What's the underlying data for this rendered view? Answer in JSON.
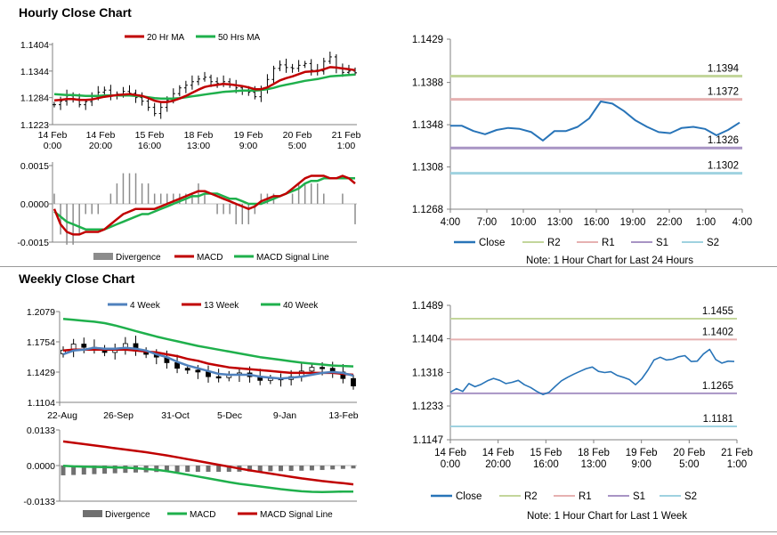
{
  "sections": {
    "hourly_title": "Hourly Close Chart",
    "weekly_title": "Weekly Close Chart"
  },
  "colors": {
    "ma_short": "#c00000",
    "ma_long": "#1fb04c",
    "close": "#2874b8",
    "r2": "#c3d69b",
    "r1": "#e6b1b1",
    "s1": "#a894c4",
    "s2": "#9fd2e0",
    "divergence": "#8c8c8c",
    "price_bar": "#000000",
    "four_week": "#4f81bd"
  },
  "chart_data": [
    {
      "id": "hourly_price",
      "type": "ohlc",
      "legend": [
        "20 Hr MA",
        "50 Hrs MA"
      ],
      "yticks": [
        "1.1404",
        "1.1344",
        "1.1284",
        "1.1223"
      ],
      "ylim": [
        1.1223,
        1.1404
      ],
      "xticks": [
        [
          "14 Feb",
          "0:00"
        ],
        [
          "14 Feb",
          "20:00"
        ],
        [
          "15 Feb",
          "16:00"
        ],
        [
          "18 Feb",
          "13:00"
        ],
        [
          "19 Feb",
          "9:00"
        ],
        [
          "20 Feb",
          "5:00"
        ],
        [
          "21 Feb",
          "1:00"
        ]
      ],
      "close": [
        1.1268,
        1.1276,
        1.1288,
        1.1281,
        1.1268,
        1.1275,
        1.1286,
        1.1296,
        1.1301,
        1.129,
        1.1292,
        1.1298,
        1.1294,
        1.1284,
        1.1276,
        1.1262,
        1.1248,
        1.1262,
        1.1279,
        1.1293,
        1.1306,
        1.1312,
        1.132,
        1.1326,
        1.133,
        1.132,
        1.1316,
        1.132,
        1.1312,
        1.1306,
        1.13,
        1.1296,
        1.1286,
        1.1303,
        1.1325,
        1.135,
        1.1358,
        1.1352,
        1.135,
        1.1357,
        1.1361,
        1.1346,
        1.1344,
        1.1366,
        1.1376,
        1.1351,
        1.1341,
        1.1344,
        1.134
      ],
      "ma20": [
        1.1278,
        1.1279,
        1.1281,
        1.1281,
        1.1279,
        1.1279,
        1.128,
        1.1283,
        1.1286,
        1.1288,
        1.129,
        1.1291,
        1.1292,
        1.129,
        1.1288,
        1.1283,
        1.1277,
        1.1274,
        1.1274,
        1.1277,
        1.1282,
        1.1288,
        1.1295,
        1.1302,
        1.1308,
        1.1311,
        1.1313,
        1.1315,
        1.1314,
        1.1312,
        1.131,
        1.1307,
        1.1303,
        1.1303,
        1.1307,
        1.1315,
        1.1323,
        1.1328,
        1.1332,
        1.1337,
        1.1342,
        1.1343,
        1.1344,
        1.1348,
        1.1353,
        1.1352,
        1.135,
        1.1348,
        1.1346
      ],
      "ma50": [
        1.1292,
        1.1291,
        1.129,
        1.129,
        1.1289,
        1.1288,
        1.1288,
        1.1288,
        1.1289,
        1.1289,
        1.1289,
        1.1289,
        1.1289,
        1.1288,
        1.1287,
        1.1285,
        1.1283,
        1.1282,
        1.1282,
        1.1282,
        1.1283,
        1.1285,
        1.1287,
        1.1289,
        1.1291,
        1.1293,
        1.1295,
        1.1297,
        1.1298,
        1.1299,
        1.13,
        1.13,
        1.13,
        1.1301,
        1.1303,
        1.1306,
        1.131,
        1.1313,
        1.1316,
        1.1319,
        1.1322,
        1.1324,
        1.1326,
        1.1329,
        1.1332,
        1.1333,
        1.1334,
        1.1335,
        1.1336
      ]
    },
    {
      "id": "hourly_macd",
      "type": "line",
      "legend": [
        "Divergence",
        "MACD",
        "MACD Signal Line"
      ],
      "yticks": [
        "0.0015",
        "0.0000",
        "-0.0015"
      ],
      "ylim": [
        -0.0015,
        0.0015
      ],
      "macd": [
        -0.0002,
        -0.0008,
        -0.0011,
        -0.0012,
        -0.0012,
        -0.0011,
        -0.0011,
        -0.0011,
        -0.001,
        -0.0008,
        -0.0006,
        -0.0004,
        -0.0003,
        -0.0002,
        -0.0002,
        -0.0002,
        -0.0002,
        -0.0001,
        0.0,
        0.0001,
        0.0002,
        0.0003,
        0.0004,
        0.0005,
        0.0005,
        0.0004,
        0.0003,
        0.0002,
        0.0001,
        0.0,
        -0.0001,
        -0.0002,
        -0.0001,
        0.0001,
        0.0002,
        0.0003,
        0.0003,
        0.0004,
        0.0006,
        0.0008,
        0.001,
        0.0011,
        0.0011,
        0.0011,
        0.001,
        0.001,
        0.0011,
        0.001,
        0.0008
      ],
      "signal": [
        -0.0003,
        -0.0005,
        -0.0007,
        -0.0008,
        -0.0009,
        -0.001,
        -0.001,
        -0.001,
        -0.001,
        -0.0009,
        -0.0008,
        -0.0007,
        -0.0006,
        -0.0005,
        -0.0004,
        -0.0004,
        -0.0003,
        -0.0002,
        -0.0001,
        0.0,
        0.0001,
        0.0002,
        0.0003,
        0.0003,
        0.0004,
        0.0004,
        0.0004,
        0.0003,
        0.0002,
        0.0002,
        0.0001,
        0.0,
        0.0,
        0.0,
        0.0001,
        0.0002,
        0.0003,
        0.0004,
        0.0005,
        0.0006,
        0.0008,
        0.0009,
        0.0009,
        0.001,
        0.001,
        0.001,
        0.001,
        0.001,
        0.001
      ]
    },
    {
      "id": "hourly_close_levels",
      "type": "line",
      "yticks": [
        "1.1429",
        "1.1388",
        "1.1348",
        "1.1308",
        "1.1268"
      ],
      "ylim": [
        1.1268,
        1.1429
      ],
      "xticks": [
        "4:00",
        "7:00",
        "10:00",
        "13:00",
        "16:00",
        "19:00",
        "22:00",
        "1:00",
        "4:00"
      ],
      "close": [
        1.1347,
        1.1347,
        1.1342,
        1.1339,
        1.1343,
        1.1345,
        1.1344,
        1.1341,
        1.1333,
        1.1342,
        1.1342,
        1.1346,
        1.1354,
        1.137,
        1.1368,
        1.1361,
        1.1352,
        1.1346,
        1.1341,
        1.134,
        1.1345,
        1.1346,
        1.1344,
        1.1338,
        1.1343,
        1.135
      ],
      "levels": {
        "R2": 1.1394,
        "R1": 1.1372,
        "S1": 1.1326,
        "S2": 1.1302
      },
      "level_labels": [
        "1.1394",
        "1.1372",
        "1.1326",
        "1.1302"
      ],
      "legend": [
        "Close",
        "R2",
        "R1",
        "S1",
        "S2"
      ],
      "note": "Note: 1 Hour Chart for Last 24 Hours"
    },
    {
      "id": "weekly_price",
      "type": "ohlc",
      "legend": [
        "4 Week",
        "13 Week",
        "40 Week"
      ],
      "yticks": [
        "1.2079",
        "1.1754",
        "1.1429",
        "1.1104"
      ],
      "ylim": [
        1.1104,
        1.2079
      ],
      "xticks": [
        "22-Aug",
        "26-Sep",
        "31-Oct",
        "5-Dec",
        "9-Jan",
        "13-Feb"
      ],
      "close": [
        1.1665,
        1.173,
        1.1695,
        1.168,
        1.164,
        1.168,
        1.1735,
        1.1655,
        1.162,
        1.159,
        1.153,
        1.147,
        1.145,
        1.143,
        1.138,
        1.137,
        1.14,
        1.142,
        1.138,
        1.134,
        1.136,
        1.135,
        1.138,
        1.144,
        1.148,
        1.147,
        1.143,
        1.136,
        1.128
      ],
      "wk4": [
        1.162,
        1.166,
        1.167,
        1.169,
        1.168,
        1.168,
        1.169,
        1.168,
        1.166,
        1.162,
        1.159,
        1.154,
        1.15,
        1.147,
        1.144,
        1.141,
        1.14,
        1.14,
        1.14,
        1.138,
        1.137,
        1.136,
        1.137,
        1.138,
        1.14,
        1.142,
        1.143,
        1.142,
        1.139
      ],
      "wk13": [
        1.166,
        1.167,
        1.167,
        1.167,
        1.167,
        1.167,
        1.167,
        1.166,
        1.165,
        1.164,
        1.162,
        1.16,
        1.157,
        1.155,
        1.152,
        1.15,
        1.148,
        1.147,
        1.146,
        1.145,
        1.144,
        1.143,
        1.142,
        1.142,
        1.142,
        1.142,
        1.142,
        1.141,
        1.14
      ],
      "wk40": [
        1.2,
        1.199,
        1.198,
        1.197,
        1.1955,
        1.193,
        1.19,
        1.187,
        1.184,
        1.181,
        1.1785,
        1.176,
        1.1735,
        1.171,
        1.169,
        1.167,
        1.165,
        1.163,
        1.161,
        1.159,
        1.1575,
        1.156,
        1.1545,
        1.153,
        1.152,
        1.151,
        1.15,
        1.1495,
        1.149
      ]
    },
    {
      "id": "weekly_macd",
      "type": "line",
      "legend": [
        "Divergence",
        "MACD",
        "MACD Signal Line"
      ],
      "yticks": [
        "0.0133",
        "0.0000",
        "-0.0133"
      ],
      "ylim": [
        -0.0133,
        0.0133
      ],
      "macd": [
        -0.0001,
        -0.0003,
        -0.0004,
        -0.0005,
        -0.0006,
        -0.0007,
        -0.0008,
        -0.001,
        -0.0013,
        -0.0016,
        -0.0021,
        -0.0027,
        -0.0034,
        -0.0041,
        -0.0048,
        -0.0055,
        -0.0062,
        -0.0068,
        -0.0073,
        -0.0078,
        -0.0083,
        -0.0088,
        -0.0092,
        -0.0096,
        -0.0098,
        -0.0099,
        -0.0098,
        -0.0097,
        -0.0097
      ],
      "signal": [
        0.009,
        0.0085,
        0.008,
        0.0075,
        0.007,
        0.0065,
        0.006,
        0.0055,
        0.005,
        0.0044,
        0.0038,
        0.0031,
        0.0024,
        0.0017,
        0.001,
        0.0003,
        -0.0004,
        -0.0011,
        -0.0018,
        -0.0024,
        -0.003,
        -0.0036,
        -0.0042,
        -0.0048,
        -0.0053,
        -0.0058,
        -0.0062,
        -0.0066,
        -0.007
      ]
    },
    {
      "id": "weekly_close_levels",
      "type": "line",
      "yticks": [
        "1.1489",
        "1.1404",
        "1.1318",
        "1.1233",
        "1.1147"
      ],
      "ylim": [
        1.1147,
        1.1489
      ],
      "xticks": [
        [
          "14 Feb",
          "0:00"
        ],
        [
          "14 Feb",
          "20:00"
        ],
        [
          "15 Feb",
          "16:00"
        ],
        [
          "18 Feb",
          "13:00"
        ],
        [
          "19 Feb",
          "9:00"
        ],
        [
          "20 Feb",
          "5:00"
        ],
        [
          "21 Feb",
          "1:00"
        ]
      ],
      "close": [
        1.1268,
        1.1277,
        1.127,
        1.129,
        1.1282,
        1.1288,
        1.1297,
        1.1303,
        1.1298,
        1.129,
        1.1293,
        1.1298,
        1.1287,
        1.128,
        1.127,
        1.1262,
        1.1268,
        1.1283,
        1.1297,
        1.1306,
        1.1314,
        1.1321,
        1.1328,
        1.1332,
        1.1321,
        1.1318,
        1.132,
        1.1311,
        1.1306,
        1.13,
        1.1287,
        1.1302,
        1.1324,
        1.135,
        1.1357,
        1.135,
        1.1352,
        1.1358,
        1.1361,
        1.1346,
        1.1347,
        1.1365,
        1.1377,
        1.1351,
        1.1342,
        1.1347,
        1.1346
      ],
      "levels": {
        "R2": 1.1455,
        "R1": 1.1402,
        "S1": 1.1265,
        "S2": 1.1181
      },
      "level_labels": [
        "1.1455",
        "1.1402",
        "1.1265",
        "1.1181"
      ],
      "legend": [
        "Close",
        "R2",
        "R1",
        "S1",
        "S2"
      ],
      "note": "Note: 1 Hour Chart for Last 1 Week"
    }
  ]
}
